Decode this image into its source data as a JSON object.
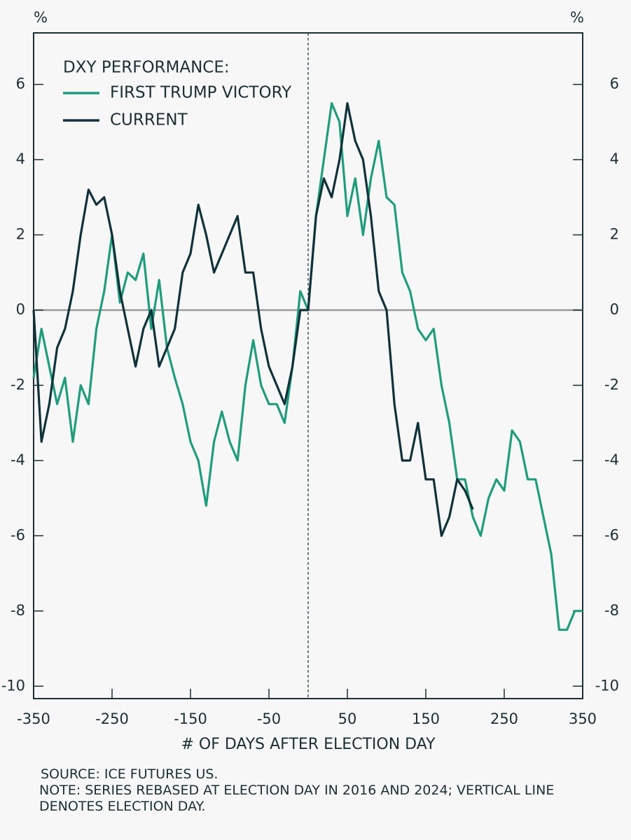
{
  "chart_data": {
    "type": "line",
    "legend_title": "DXY PERFORMANCE:",
    "y_unit_left": "%",
    "y_unit_right": "%",
    "xlabel": "# OF DAYS AFTER ELECTION DAY",
    "source": "SOURCE: ICE FUTURES US.",
    "note": "NOTE: SERIES REBASED AT ELECTION DAY IN 2016 AND 2024; VERTICAL LINE DENOTES ELECTION DAY.",
    "x": [
      -350,
      -340,
      -330,
      -320,
      -310,
      -300,
      -290,
      -280,
      -270,
      -260,
      -250,
      -240,
      -230,
      -220,
      -210,
      -200,
      -190,
      -180,
      -170,
      -160,
      -150,
      -140,
      -130,
      -120,
      -110,
      -100,
      -90,
      -80,
      -70,
      -60,
      -50,
      -40,
      -30,
      -20,
      -10,
      0,
      10,
      20,
      30,
      40,
      50,
      60,
      70,
      80,
      90,
      100,
      110,
      120,
      130,
      140,
      150,
      160,
      170,
      180,
      190,
      200,
      210,
      220,
      230,
      240,
      250,
      260,
      270,
      280,
      290,
      300,
      310,
      320,
      330,
      340,
      350
    ],
    "series": [
      {
        "name": "FIRST TRUMP VICTORY",
        "color": "#1f9d7d",
        "values": [
          -1.8,
          -0.5,
          -1.5,
          -2.5,
          -1.8,
          -3.5,
          -2.0,
          -2.5,
          -0.5,
          0.5,
          2.0,
          0.2,
          1.0,
          0.8,
          1.5,
          -0.5,
          0.8,
          -1.0,
          -1.8,
          -2.5,
          -3.5,
          -4.0,
          -5.2,
          -3.5,
          -2.7,
          -3.5,
          -4.0,
          -2.0,
          -0.8,
          -2.0,
          -2.5,
          -2.5,
          -3.0,
          -1.5,
          0.5,
          0,
          2.5,
          4.0,
          5.5,
          5.0,
          2.5,
          3.5,
          2.0,
          3.5,
          4.5,
          3.0,
          2.8,
          1.0,
          0.5,
          -0.5,
          -0.8,
          -0.5,
          -2.0,
          -3.0,
          -4.5,
          -4.5,
          -5.5,
          -6.0,
          -5.0,
          -4.5,
          -4.8,
          -3.2,
          -3.5,
          -4.5,
          -4.5,
          -5.5,
          -6.5,
          -8.5,
          -8.5,
          -8.0,
          -8.0
        ]
      },
      {
        "name": "CURRENT",
        "color": "#10323a",
        "values": [
          0,
          -3.5,
          -2.5,
          -1.0,
          -0.5,
          0.5,
          2.0,
          3.2,
          2.8,
          3.0,
          2.0,
          0.5,
          -0.5,
          -1.5,
          -0.5,
          0,
          -1.5,
          -1.0,
          -0.5,
          1.0,
          1.5,
          2.8,
          2.0,
          1.0,
          1.5,
          2.0,
          2.5,
          1.0,
          1.0,
          -0.5,
          -1.5,
          -2.0,
          -2.5,
          -1.5,
          0,
          0,
          2.5,
          3.5,
          3.0,
          4.0,
          5.5,
          4.5,
          4.0,
          2.5,
          0.5,
          0,
          -2.5,
          -4.0,
          -4.0,
          -3.0,
          -4.5,
          -4.5,
          -6.0,
          -5.5,
          -4.5,
          -4.8,
          -5.3,
          null,
          null,
          null,
          null,
          null,
          null,
          null,
          null,
          null,
          null,
          null,
          null,
          null,
          null
        ]
      }
    ],
    "xlim": [
      -350,
      350
    ],
    "xticks": [
      -350,
      -250,
      -150,
      -50,
      50,
      150,
      250,
      350
    ],
    "ylim": [
      -10.33,
      7.37
    ],
    "yticks": [
      -10,
      -8,
      -6,
      -4,
      -2,
      0,
      2,
      4,
      6
    ]
  }
}
